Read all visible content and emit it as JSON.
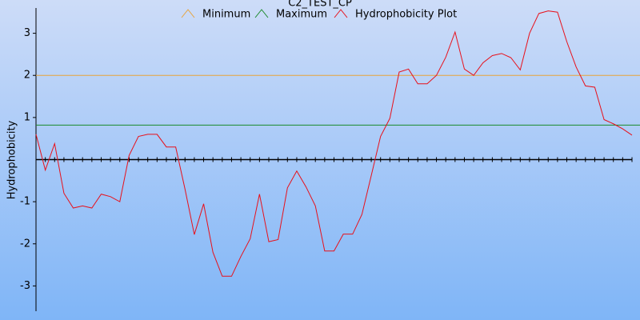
{
  "chart_data": {
    "type": "line",
    "title": "C2_TEST_CP",
    "y_label": "Hydrophobicity",
    "ylim": [
      -3.6,
      3.6
    ],
    "yticks": [
      -3,
      -2,
      -1,
      1,
      2,
      3
    ],
    "reference_lines": [
      {
        "name": "Minimum",
        "color": "#e8a33a",
        "value": 2.0
      },
      {
        "name": "Maximum",
        "color": "#1a8a2a",
        "value": 0.82
      }
    ],
    "series": [
      {
        "name": "Hydrophobicity Plot",
        "color": "#e8101a",
        "values": [
          0.6,
          -0.25,
          0.38,
          -0.8,
          -1.15,
          -1.1,
          -1.15,
          -0.82,
          -0.88,
          -1.0,
          0.1,
          0.55,
          0.6,
          0.6,
          0.3,
          0.3,
          -0.7,
          -1.78,
          -1.05,
          -2.2,
          -2.77,
          -2.77,
          -2.3,
          -1.88,
          -0.82,
          -1.95,
          -1.9,
          -0.67,
          -0.27,
          -0.65,
          -1.1,
          -2.17,
          -2.17,
          -1.77,
          -1.77,
          -1.3,
          -0.38,
          0.55,
          0.98,
          2.08,
          2.15,
          1.8,
          1.8,
          2.0,
          2.43,
          3.03,
          2.15,
          2.0,
          2.3,
          2.47,
          2.52,
          2.42,
          2.13,
          3.0,
          3.47,
          3.53,
          3.5,
          2.8,
          2.2,
          1.75,
          1.72,
          0.95,
          0.85,
          0.73,
          0.58
        ]
      }
    ]
  }
}
